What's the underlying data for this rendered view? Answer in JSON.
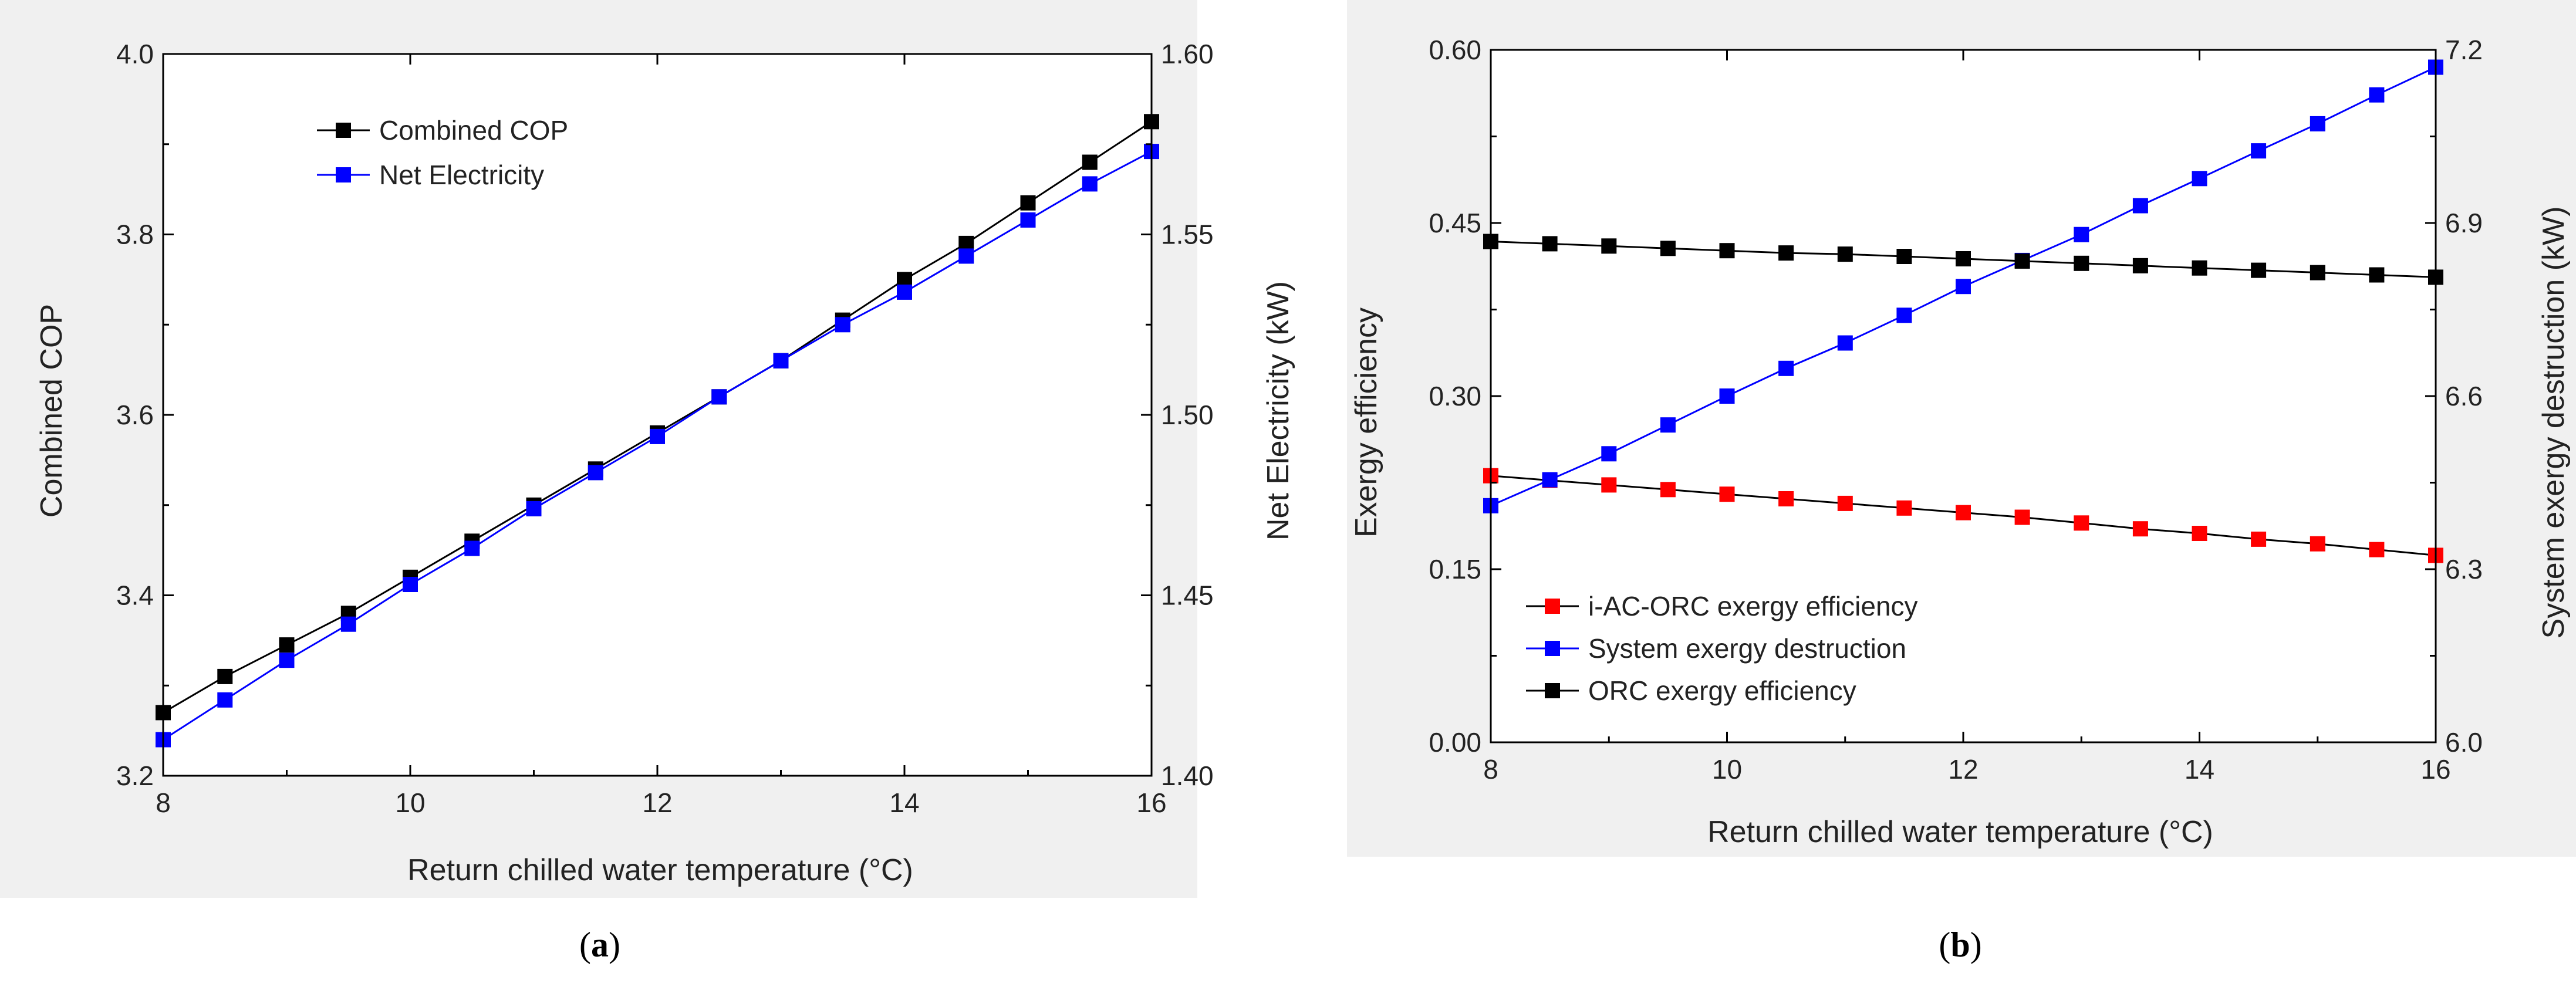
{
  "chart_data": [
    {
      "id": "a",
      "type": "line",
      "caption_letter": "a",
      "xlabel": "Return chilled water temperature (°C)",
      "ylabel": "Combined COP",
      "y2label": "Net Electricity (kW)",
      "xlim": [
        8,
        16
      ],
      "ylim": [
        3.2,
        4.0
      ],
      "y2lim": [
        1.4,
        1.6
      ],
      "xticks": [
        "8",
        "10",
        "12",
        "14",
        "16"
      ],
      "xtick_values": [
        8,
        10,
        12,
        14,
        16
      ],
      "yticks": [
        "3.2",
        "3.4",
        "3.6",
        "3.8",
        "4.0"
      ],
      "ytick_values": [
        3.2,
        3.4,
        3.6,
        3.8,
        4.0
      ],
      "y2ticks": [
        "1.40",
        "1.45",
        "1.50",
        "1.55",
        "1.60"
      ],
      "y2tick_values": [
        1.4,
        1.45,
        1.5,
        1.55,
        1.6
      ],
      "legend_position": "top-left",
      "x": [
        8,
        8.5,
        9,
        9.5,
        10,
        10.5,
        11,
        11.5,
        12,
        12.5,
        13,
        13.5,
        14,
        14.5,
        15,
        15.5,
        16
      ],
      "series": [
        {
          "name": "Combined COP",
          "axis": "left",
          "color": "#000000",
          "marker_color": "#000000",
          "values": [
            3.27,
            3.31,
            3.345,
            3.38,
            3.42,
            3.46,
            3.5,
            3.54,
            3.58,
            3.62,
            3.66,
            3.705,
            3.75,
            3.79,
            3.835,
            3.88,
            3.925
          ]
        },
        {
          "name": "Net Electricity",
          "axis": "right",
          "color": "#0000ff",
          "marker_color": "#0000ff",
          "values": [
            1.41,
            1.421,
            1.432,
            1.442,
            1.453,
            1.463,
            1.474,
            1.484,
            1.494,
            1.505,
            1.515,
            1.525,
            1.534,
            1.544,
            1.554,
            1.564,
            1.573
          ]
        }
      ]
    },
    {
      "id": "b",
      "type": "line",
      "caption_letter": "b",
      "xlabel": "Return chilled water temperature (°C)",
      "ylabel": "Exergy efficiency",
      "y2label": "System exergy destruction (kW)",
      "xlim": [
        8,
        16
      ],
      "ylim": [
        0.0,
        0.6
      ],
      "y2lim": [
        6.0,
        7.2
      ],
      "xticks": [
        "8",
        "10",
        "12",
        "14",
        "16"
      ],
      "xtick_values": [
        8,
        10,
        12,
        14,
        16
      ],
      "yticks": [
        "0.00",
        "0.15",
        "0.30",
        "0.45",
        "0.60"
      ],
      "ytick_values": [
        0.0,
        0.15,
        0.3,
        0.45,
        0.6
      ],
      "y2ticks": [
        "6.0",
        "6.3",
        "6.6",
        "6.9",
        "7.2"
      ],
      "y2tick_values": [
        6.0,
        6.3,
        6.6,
        6.9,
        7.2
      ],
      "legend_position": "bottom-left",
      "x": [
        8,
        8.5,
        9,
        9.5,
        10,
        10.5,
        11,
        11.5,
        12,
        12.5,
        13,
        13.5,
        14,
        14.5,
        15,
        15.5,
        16
      ],
      "series": [
        {
          "name": "i-AC-ORC exergy efficiency",
          "axis": "left",
          "color": "#000000",
          "marker_color": "#ff0000",
          "values": [
            0.231,
            0.227,
            0.223,
            0.219,
            0.215,
            0.211,
            0.207,
            0.203,
            0.199,
            0.195,
            0.19,
            0.185,
            0.181,
            0.176,
            0.172,
            0.167,
            0.162
          ]
        },
        {
          "name": "System exergy destruction",
          "axis": "right",
          "color": "#0000ff",
          "marker_color": "#0000ff",
          "values": [
            6.41,
            6.455,
            6.5,
            6.55,
            6.6,
            6.648,
            6.692,
            6.74,
            6.79,
            6.835,
            6.88,
            6.93,
            6.977,
            7.025,
            7.072,
            7.122,
            7.17
          ]
        },
        {
          "name": "ORC exergy efficiency",
          "axis": "left",
          "color": "#000000",
          "marker_color": "#000000",
          "values": [
            0.434,
            0.432,
            0.43,
            0.428,
            0.426,
            0.424,
            0.423,
            0.421,
            0.419,
            0.417,
            0.415,
            0.413,
            0.411,
            0.409,
            0.407,
            0.405,
            0.403
          ]
        }
      ]
    }
  ]
}
